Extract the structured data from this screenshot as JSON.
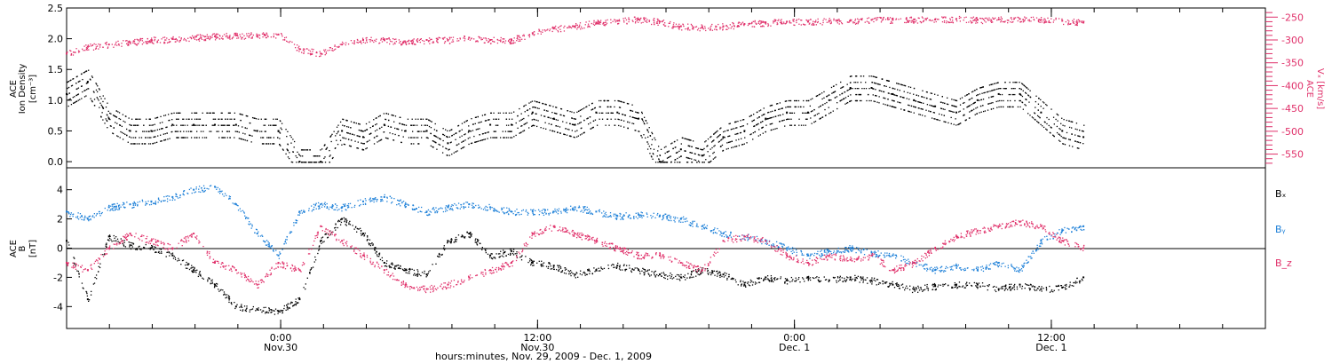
{
  "chart_data": [
    {
      "type": "scatter",
      "panel": "top",
      "ylabel": [
        "ACE",
        "Ion Density",
        "[cm⁻³]"
      ],
      "ylabel_right": [
        "ACE",
        "Vₓ [km/s]"
      ],
      "ylim": [
        -0.1,
        2.5
      ],
      "ylim_right": [
        -580,
        -230
      ],
      "yticks": [
        "0.0",
        "0.5",
        "1.0",
        "1.5",
        "2.0",
        "2.5"
      ],
      "yticks_right": [
        "-250",
        "-300",
        "-350",
        "-400",
        "-450",
        "-500",
        "-550"
      ],
      "series": [
        {
          "name": "Ion Density",
          "color": "#000000",
          "axis": "left",
          "x": [
            0,
            1,
            2,
            3,
            4,
            5,
            6,
            7,
            8,
            9,
            10,
            11,
            12,
            13,
            14,
            15,
            16,
            17,
            18,
            19,
            20,
            21,
            22,
            23,
            24,
            25,
            26,
            27,
            28,
            29,
            30,
            31,
            32,
            33,
            34,
            35,
            36,
            37,
            38,
            39,
            40,
            41,
            42,
            43,
            44,
            45,
            46,
            47,
            48
          ],
          "y": [
            1.1,
            1.3,
            0.7,
            0.5,
            0.5,
            0.6,
            0.6,
            0.6,
            0.6,
            0.5,
            0.5,
            0.0,
            0.0,
            0.5,
            0.4,
            0.6,
            0.5,
            0.5,
            0.3,
            0.5,
            0.6,
            0.6,
            0.8,
            0.7,
            0.6,
            0.8,
            0.8,
            0.7,
            0.0,
            0.2,
            0.1,
            0.4,
            0.5,
            0.7,
            0.8,
            0.8,
            1.0,
            1.2,
            1.2,
            1.1,
            1.0,
            0.9,
            0.8,
            1.0,
            1.1,
            1.1,
            0.8,
            0.5,
            0.4
          ]
        },
        {
          "name": "Vx",
          "color": "#e0306a",
          "axis": "right",
          "x": [
            0,
            1,
            2,
            3,
            4,
            5,
            6,
            7,
            8,
            9,
            10,
            11,
            12,
            13,
            14,
            15,
            16,
            17,
            18,
            19,
            20,
            21,
            22,
            23,
            24,
            25,
            26,
            27,
            28,
            29,
            30,
            31,
            32,
            33,
            34,
            35,
            36,
            37,
            38,
            39,
            40,
            41,
            42,
            43,
            44,
            45,
            46,
            47,
            48
          ],
          "y": [
            -330,
            -315,
            -310,
            -305,
            -300,
            -298,
            -295,
            -292,
            -290,
            -290,
            -288,
            -320,
            -330,
            -310,
            -300,
            -300,
            -305,
            -300,
            -300,
            -295,
            -300,
            -300,
            -285,
            -275,
            -270,
            -262,
            -258,
            -255,
            -260,
            -270,
            -272,
            -270,
            -265,
            -262,
            -260,
            -260,
            -258,
            -258,
            -256,
            -256,
            -255,
            -255,
            -254,
            -256,
            -255,
            -254,
            -256,
            -258,
            -262
          ]
        }
      ]
    },
    {
      "type": "scatter",
      "panel": "bottom",
      "ylabel": [
        "ACE",
        "B",
        "[nT]"
      ],
      "ylim": [
        -5.5,
        5.5
      ],
      "yticks": [
        "-4",
        "-2",
        "0",
        "2",
        "4"
      ],
      "series": [
        {
          "name": "Bₓ",
          "color": "#000000",
          "x": [
            0,
            1,
            2,
            3,
            4,
            5,
            6,
            7,
            8,
            9,
            10,
            11,
            12,
            13,
            14,
            15,
            16,
            17,
            18,
            19,
            20,
            21,
            22,
            23,
            24,
            25,
            26,
            27,
            28,
            29,
            30,
            31,
            32,
            33,
            34,
            35,
            36,
            37,
            38,
            39,
            40,
            41,
            42,
            43,
            44,
            45,
            46,
            47,
            48
          ],
          "y": [
            0.5,
            -3.5,
            0.8,
            0.2,
            0.0,
            -0.5,
            -1.5,
            -2.5,
            -4.0,
            -4.2,
            -4.3,
            -3.5,
            0.5,
            2.0,
            1.0,
            -1.0,
            -1.5,
            -1.8,
            0.5,
            1.0,
            -0.5,
            -0.2,
            -1.0,
            -1.2,
            -1.8,
            -1.5,
            -1.2,
            -1.5,
            -1.8,
            -2.0,
            -1.5,
            -1.8,
            -2.5,
            -2.0,
            -2.2,
            -2.0,
            -2.2,
            -2.0,
            -2.2,
            -2.5,
            -2.8,
            -2.6,
            -2.5,
            -2.5,
            -2.8,
            -2.5,
            -2.8,
            -2.7,
            -2.0
          ]
        },
        {
          "name": "Bᵧ",
          "color": "#1e80d8",
          "x": [
            0,
            1,
            2,
            3,
            4,
            5,
            6,
            7,
            8,
            9,
            10,
            11,
            12,
            13,
            14,
            15,
            16,
            17,
            18,
            19,
            20,
            21,
            22,
            23,
            24,
            25,
            26,
            27,
            28,
            29,
            30,
            31,
            32,
            33,
            34,
            35,
            36,
            37,
            38,
            39,
            40,
            41,
            42,
            43,
            44,
            45,
            46,
            47,
            48
          ],
          "y": [
            2.5,
            2.0,
            2.8,
            3.0,
            3.2,
            3.5,
            4.0,
            4.2,
            3.0,
            1.0,
            -0.5,
            2.5,
            3.0,
            2.8,
            3.2,
            3.5,
            3.0,
            2.5,
            2.8,
            3.0,
            2.8,
            2.5,
            2.5,
            2.5,
            2.8,
            2.5,
            2.2,
            2.3,
            2.2,
            2.0,
            1.5,
            1.0,
            0.8,
            0.5,
            0.0,
            -0.5,
            -0.2,
            0.0,
            -0.3,
            -0.5,
            -1.0,
            -1.5,
            -1.2,
            -1.5,
            -1.0,
            -1.5,
            0.5,
            1.2,
            1.5
          ]
        },
        {
          "name": "B_z",
          "color": "#e0306a",
          "x": [
            0,
            1,
            2,
            3,
            4,
            5,
            6,
            7,
            8,
            9,
            10,
            11,
            12,
            13,
            14,
            15,
            16,
            17,
            18,
            19,
            20,
            21,
            22,
            23,
            24,
            25,
            26,
            27,
            28,
            29,
            30,
            31,
            32,
            33,
            34,
            35,
            36,
            37,
            38,
            39,
            40,
            41,
            42,
            43,
            44,
            45,
            46,
            47,
            48
          ],
          "y": [
            -1.0,
            -1.5,
            0.0,
            1.0,
            0.5,
            0.0,
            1.0,
            -1.0,
            -1.5,
            -2.5,
            -1.0,
            -1.5,
            1.5,
            0.5,
            -0.5,
            -1.5,
            -2.5,
            -2.8,
            -2.5,
            -2.0,
            -1.5,
            -1.0,
            1.0,
            1.5,
            1.0,
            0.5,
            0.0,
            -0.5,
            -0.5,
            -1.0,
            -1.5,
            0.5,
            0.8,
            0.5,
            -0.5,
            -1.0,
            -0.5,
            -0.8,
            -0.5,
            -1.5,
            -1.0,
            0.0,
            0.8,
            1.2,
            1.5,
            1.8,
            1.5,
            0.5,
            0.0
          ]
        }
      ],
      "legend": [
        "Bₓ",
        "Bᵧ",
        "B_z"
      ],
      "legend_placement": "right"
    }
  ],
  "time_axis": {
    "ticks": [
      {
        "label": "0:00",
        "sub": "Nov.30",
        "x_hours": 24
      },
      {
        "label": "12:00",
        "sub": "Nov.30",
        "x_hours": 36
      },
      {
        "label": "0:00",
        "sub": "Dec. 1",
        "x_hours": 48
      },
      {
        "label": "12:00",
        "sub": "Dec. 1",
        "x_hours": 60
      }
    ],
    "xlim_hours": [
      14,
      70
    ],
    "data_xlim_hours": [
      14,
      61.5
    ],
    "title": "hours:minutes, Nov. 29, 2009 - Dec. 1, 2009"
  },
  "colors": {
    "black": "#000000",
    "blue": "#1e80d8",
    "pink": "#e0306a"
  }
}
